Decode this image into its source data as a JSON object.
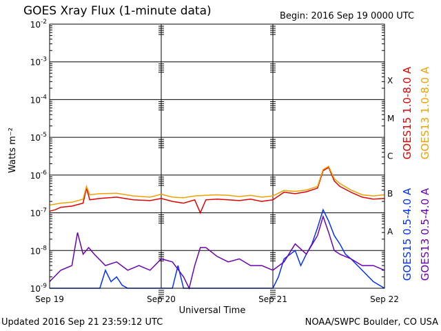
{
  "header": {
    "title": "GOES Xray Flux (1-minute data)",
    "begin": "Begin:  2016 Sep 19 0000 UTC"
  },
  "footer": {
    "updated": "Updated 2016 Sep 21 23:59:12 UTC",
    "credit": "NOAA/SWPC Boulder, CO USA"
  },
  "colors": {
    "goes15_long": "#e00000",
    "goes13_long": "#f0a000",
    "goes15_short": "#0030ff",
    "goes13_short": "#6a00b0",
    "grid": "#000000"
  },
  "chart_data": {
    "type": "line",
    "title": "GOES Xray Flux (1-minute data)",
    "xlabel": "Universal Time",
    "ylabel": "Watts m⁻²",
    "yscale": "log",
    "ylim": [
      1e-09,
      0.01
    ],
    "xlim": [
      0,
      3
    ],
    "x_ticks": [
      {
        "x": 0,
        "label": "Sep 19"
      },
      {
        "x": 1,
        "label": "Sep 20"
      },
      {
        "x": 2,
        "label": "Sep 21"
      },
      {
        "x": 3,
        "label": "Sep 22"
      }
    ],
    "y_ticks": [
      {
        "exp": -9,
        "base": "10",
        "sup": "-9"
      },
      {
        "exp": -8,
        "base": "10",
        "sup": "-8"
      },
      {
        "exp": -7,
        "base": "10",
        "sup": "-7"
      },
      {
        "exp": -6,
        "base": "10",
        "sup": "-6"
      },
      {
        "exp": -5,
        "base": "10",
        "sup": "-5"
      },
      {
        "exp": -4,
        "base": "10",
        "sup": "-4"
      },
      {
        "exp": -3,
        "base": "10",
        "sup": "-3"
      },
      {
        "exp": -2,
        "base": "10",
        "sup": "-2"
      }
    ],
    "flare_classes": [
      {
        "label": "A",
        "exp": -8
      },
      {
        "label": "B",
        "exp": -7
      },
      {
        "label": "C",
        "exp": -6
      },
      {
        "label": "M",
        "exp": -5
      },
      {
        "label": "X",
        "exp": -4
      }
    ],
    "grid": true,
    "legend": [
      {
        "label": "GOES15 1.0-8.0 A",
        "color": "#e00000",
        "position": "right-upper"
      },
      {
        "label": "GOES13 1.0-8.0 A",
        "color": "#f0a000",
        "position": "right-upper"
      },
      {
        "label": "GOES15 0.5-4.0 A",
        "color": "#0030ff",
        "position": "right-lower"
      },
      {
        "label": "GOES13 0.5-4.0 A",
        "color": "#6a00b0",
        "position": "right-lower"
      }
    ],
    "series": [
      {
        "name": "GOES15 1.0-8.0 A",
        "color": "#e00000",
        "x": [
          0,
          0.05,
          0.1,
          0.2,
          0.3,
          0.33,
          0.36,
          0.45,
          0.6,
          0.75,
          0.9,
          1.0,
          1.1,
          1.2,
          1.3,
          1.35,
          1.4,
          1.5,
          1.6,
          1.7,
          1.8,
          1.9,
          2.0,
          2.1,
          2.2,
          2.3,
          2.4,
          2.45,
          2.5,
          2.55,
          2.6,
          2.7,
          2.8,
          2.9,
          3.0
        ],
        "y": [
          1.1e-07,
          1.2e-07,
          1.4e-07,
          1.5e-07,
          1.8e-07,
          4.5e-07,
          2.2e-07,
          2.4e-07,
          2.6e-07,
          2.2e-07,
          2.1e-07,
          2.4e-07,
          2e-07,
          1.8e-07,
          2.2e-07,
          1e-07,
          2.2e-07,
          2.3e-07,
          2.2e-07,
          2.1e-07,
          2.3e-07,
          2e-07,
          2.2e-07,
          3.5e-07,
          3.2e-07,
          3.6e-07,
          4.5e-07,
          1.3e-06,
          1.6e-06,
          7e-07,
          5e-07,
          3.5e-07,
          2.6e-07,
          2.3e-07,
          2.4e-07
        ]
      },
      {
        "name": "GOES13 1.0-8.0 A",
        "color": "#f0a000",
        "x": [
          0,
          0.1,
          0.2,
          0.3,
          0.33,
          0.36,
          0.45,
          0.6,
          0.75,
          0.9,
          1.0,
          1.1,
          1.2,
          1.3,
          1.4,
          1.5,
          1.6,
          1.7,
          1.8,
          1.9,
          2.0,
          2.1,
          2.2,
          2.3,
          2.4,
          2.45,
          2.5,
          2.55,
          2.6,
          2.7,
          2.8,
          2.9,
          3.0
        ],
        "y": [
          1.6e-07,
          1.8e-07,
          1.9e-07,
          2.3e-07,
          5e-07,
          3e-07,
          3.2e-07,
          3.3e-07,
          2.8e-07,
          2.6e-07,
          3.1e-07,
          2.6e-07,
          2.5e-07,
          2.8e-07,
          2.9e-07,
          3e-07,
          2.9e-07,
          2.7e-07,
          2.9e-07,
          2.6e-07,
          2.8e-07,
          3.9e-07,
          3.7e-07,
          4e-07,
          5e-07,
          1.4e-06,
          1.7e-06,
          8e-07,
          6e-07,
          4e-07,
          3e-07,
          2.8e-07,
          3e-07
        ]
      },
      {
        "name": "GOES15 0.5-4.0 A",
        "color": "#0030ff",
        "x": [
          0,
          0.45,
          0.5,
          0.55,
          0.6,
          0.65,
          0.7,
          1.1,
          1.15,
          1.2,
          1.5,
          1.55,
          2.0,
          2.05,
          2.1,
          2.2,
          2.25,
          2.3,
          2.35,
          2.4,
          2.45,
          2.5,
          2.55,
          2.6,
          2.65,
          2.7,
          2.8,
          2.9,
          3.0
        ],
        "y": [
          1e-09,
          1e-09,
          3e-09,
          1.5e-09,
          2e-09,
          1.2e-09,
          1e-09,
          1e-09,
          4e-09,
          1e-09,
          1e-09,
          1e-09,
          1e-09,
          2e-09,
          6e-09,
          1e-08,
          4e-09,
          8e-09,
          1.5e-08,
          4e-08,
          1.2e-07,
          6e-08,
          2.5e-08,
          1.5e-08,
          8e-09,
          6e-09,
          3e-09,
          1.5e-09,
          1e-09
        ]
      },
      {
        "name": "GOES13 0.5-4.0 A",
        "color": "#6a00b0",
        "x": [
          0,
          0.1,
          0.2,
          0.25,
          0.3,
          0.35,
          0.4,
          0.5,
          0.6,
          0.7,
          0.8,
          0.9,
          1.0,
          1.1,
          1.2,
          1.25,
          1.3,
          1.35,
          1.4,
          1.5,
          1.6,
          1.7,
          1.8,
          1.9,
          2.0,
          2.1,
          2.2,
          2.3,
          2.4,
          2.45,
          2.5,
          2.55,
          2.6,
          2.7,
          2.8,
          2.9,
          3.0
        ],
        "y": [
          1.5e-09,
          3e-09,
          4e-09,
          3e-08,
          8e-09,
          1.2e-08,
          8e-09,
          4e-09,
          5e-09,
          3e-09,
          4e-09,
          3e-09,
          6e-09,
          5e-09,
          2e-09,
          1e-09,
          4e-09,
          1.2e-08,
          1.2e-08,
          7e-09,
          5e-09,
          6e-09,
          4e-09,
          4e-09,
          3e-09,
          5e-09,
          1.5e-08,
          8e-09,
          2.5e-08,
          8e-08,
          3e-08,
          1e-08,
          8e-09,
          6e-09,
          4e-09,
          4e-09,
          3e-09
        ]
      }
    ]
  }
}
